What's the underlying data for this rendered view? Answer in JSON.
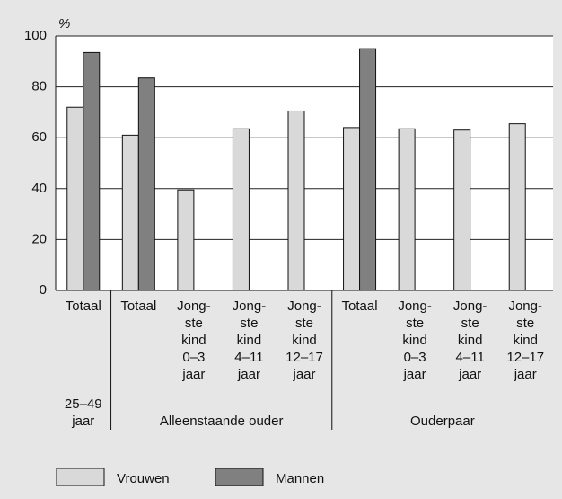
{
  "chart_data": {
    "type": "bar",
    "y_label": "%",
    "categories": [
      [
        "Totaal"
      ],
      [
        "Totaal"
      ],
      [
        "Jong-",
        "ste",
        "kind",
        "0–3",
        "jaar"
      ],
      [
        "Jong-",
        "ste",
        "kind",
        "4–11",
        "jaar"
      ],
      [
        "Jong-",
        "ste",
        "kind",
        "12–17",
        "jaar"
      ],
      [
        "Totaal"
      ],
      [
        "Jong-",
        "ste",
        "kind",
        "0–3",
        "jaar"
      ],
      [
        "Jong-",
        "ste",
        "kind",
        "4–11",
        "jaar"
      ],
      [
        "Jong-",
        "ste",
        "kind",
        "12–17",
        "jaar"
      ]
    ],
    "groups": [
      {
        "label": [
          "25–49",
          "jaar"
        ],
        "span": 1
      },
      {
        "label": [
          "Alleenstaande ouder"
        ],
        "span": 4
      },
      {
        "label": [
          "Ouderpaar"
        ],
        "span": 4
      }
    ],
    "series": [
      {
        "name": "Vrouwen",
        "color": "#d9d9d9",
        "values": [
          72,
          61,
          39.5,
          63.5,
          70.5,
          64,
          63.5,
          63,
          65.5
        ]
      },
      {
        "name": "Mannen",
        "color": "#808080",
        "values": [
          93.5,
          83.5,
          null,
          null,
          null,
          95,
          null,
          null,
          null
        ]
      }
    ],
    "ylim": [
      0,
      100
    ],
    "yticks": [
      0,
      20,
      40,
      60,
      80,
      100
    ],
    "grid": true
  }
}
